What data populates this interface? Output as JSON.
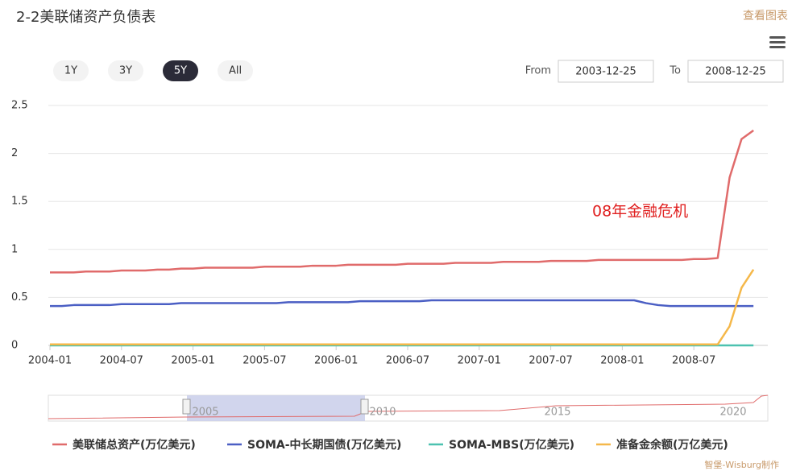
{
  "header": {
    "title": "2-2美联储资产负债表",
    "link": "查看图表"
  },
  "range_selector": {
    "buttons": [
      "1Y",
      "3Y",
      "5Y",
      "All"
    ],
    "from_label": "From",
    "from": "2003-12-25",
    "to_label": "To",
    "to": "2008-12-25"
  },
  "navigator": {
    "labels": [
      "2005",
      "2010",
      "2015",
      "2020"
    ]
  },
  "footer": {
    "credit": "智堡-Wisburg制作"
  },
  "chart_data": {
    "type": "line",
    "annotation": "08年金融危机",
    "x": [
      "2004-01",
      "2004-02",
      "2004-03",
      "2004-04",
      "2004-05",
      "2004-06",
      "2004-07",
      "2004-08",
      "2004-09",
      "2004-10",
      "2004-11",
      "2004-12",
      "2005-01",
      "2005-02",
      "2005-03",
      "2005-04",
      "2005-05",
      "2005-06",
      "2005-07",
      "2005-08",
      "2005-09",
      "2005-10",
      "2005-11",
      "2005-12",
      "2006-01",
      "2006-02",
      "2006-03",
      "2006-04",
      "2006-05",
      "2006-06",
      "2006-07",
      "2006-08",
      "2006-09",
      "2006-10",
      "2006-11",
      "2006-12",
      "2007-01",
      "2007-02",
      "2007-03",
      "2007-04",
      "2007-05",
      "2007-06",
      "2007-07",
      "2007-08",
      "2007-09",
      "2007-10",
      "2007-11",
      "2007-12",
      "2008-01",
      "2008-02",
      "2008-03",
      "2008-04",
      "2008-05",
      "2008-06",
      "2008-07",
      "2008-08",
      "2008-09",
      "2008-10",
      "2008-11",
      "2008-12"
    ],
    "xticks": [
      "2004-01",
      "2004-07",
      "2005-01",
      "2005-07",
      "2006-01",
      "2006-07",
      "2007-01",
      "2007-07",
      "2008-01",
      "2008-07"
    ],
    "ylim": [
      0,
      2.5
    ],
    "yticks": [
      0,
      0.5,
      1,
      1.5,
      2,
      2.5
    ],
    "grid": true,
    "series": [
      {
        "name": "美联储总资产(万亿美元)",
        "color": "#e06b6b",
        "values": [
          0.76,
          0.76,
          0.76,
          0.77,
          0.77,
          0.77,
          0.78,
          0.78,
          0.78,
          0.79,
          0.79,
          0.8,
          0.8,
          0.81,
          0.81,
          0.81,
          0.81,
          0.81,
          0.82,
          0.82,
          0.82,
          0.82,
          0.83,
          0.83,
          0.83,
          0.84,
          0.84,
          0.84,
          0.84,
          0.84,
          0.85,
          0.85,
          0.85,
          0.85,
          0.86,
          0.86,
          0.86,
          0.86,
          0.87,
          0.87,
          0.87,
          0.87,
          0.88,
          0.88,
          0.88,
          0.88,
          0.89,
          0.89,
          0.89,
          0.89,
          0.89,
          0.89,
          0.89,
          0.89,
          0.9,
          0.9,
          0.91,
          1.75,
          2.15,
          2.24
        ]
      },
      {
        "name": "SOMA-中长期国债(万亿美元)",
        "color": "#4b5fc4",
        "values": [
          0.41,
          0.41,
          0.42,
          0.42,
          0.42,
          0.42,
          0.43,
          0.43,
          0.43,
          0.43,
          0.43,
          0.44,
          0.44,
          0.44,
          0.44,
          0.44,
          0.44,
          0.44,
          0.44,
          0.44,
          0.45,
          0.45,
          0.45,
          0.45,
          0.45,
          0.45,
          0.46,
          0.46,
          0.46,
          0.46,
          0.46,
          0.46,
          0.47,
          0.47,
          0.47,
          0.47,
          0.47,
          0.47,
          0.47,
          0.47,
          0.47,
          0.47,
          0.47,
          0.47,
          0.47,
          0.47,
          0.47,
          0.47,
          0.47,
          0.47,
          0.44,
          0.42,
          0.41,
          0.41,
          0.41,
          0.41,
          0.41,
          0.41,
          0.41,
          0.41
        ]
      },
      {
        "name": "SOMA-MBS(万亿美元)",
        "color": "#4cc2b0",
        "values": [
          0,
          0,
          0,
          0,
          0,
          0,
          0,
          0,
          0,
          0,
          0,
          0,
          0,
          0,
          0,
          0,
          0,
          0,
          0,
          0,
          0,
          0,
          0,
          0,
          0,
          0,
          0,
          0,
          0,
          0,
          0,
          0,
          0,
          0,
          0,
          0,
          0,
          0,
          0,
          0,
          0,
          0,
          0,
          0,
          0,
          0,
          0,
          0,
          0,
          0,
          0,
          0,
          0,
          0,
          0,
          0,
          0,
          0,
          0,
          0
        ]
      },
      {
        "name": "准备金余额(万亿美元)",
        "color": "#f5b84a",
        "values": [
          0.01,
          0.01,
          0.01,
          0.01,
          0.01,
          0.01,
          0.01,
          0.01,
          0.01,
          0.01,
          0.01,
          0.01,
          0.01,
          0.01,
          0.01,
          0.01,
          0.01,
          0.01,
          0.01,
          0.01,
          0.01,
          0.01,
          0.01,
          0.01,
          0.01,
          0.01,
          0.01,
          0.01,
          0.01,
          0.01,
          0.01,
          0.01,
          0.01,
          0.01,
          0.01,
          0.01,
          0.01,
          0.01,
          0.01,
          0.01,
          0.01,
          0.01,
          0.01,
          0.01,
          0.01,
          0.01,
          0.01,
          0.01,
          0.01,
          0.01,
          0.01,
          0.01,
          0.01,
          0.01,
          0.01,
          0.01,
          0.01,
          0.2,
          0.6,
          0.79
        ]
      }
    ]
  }
}
